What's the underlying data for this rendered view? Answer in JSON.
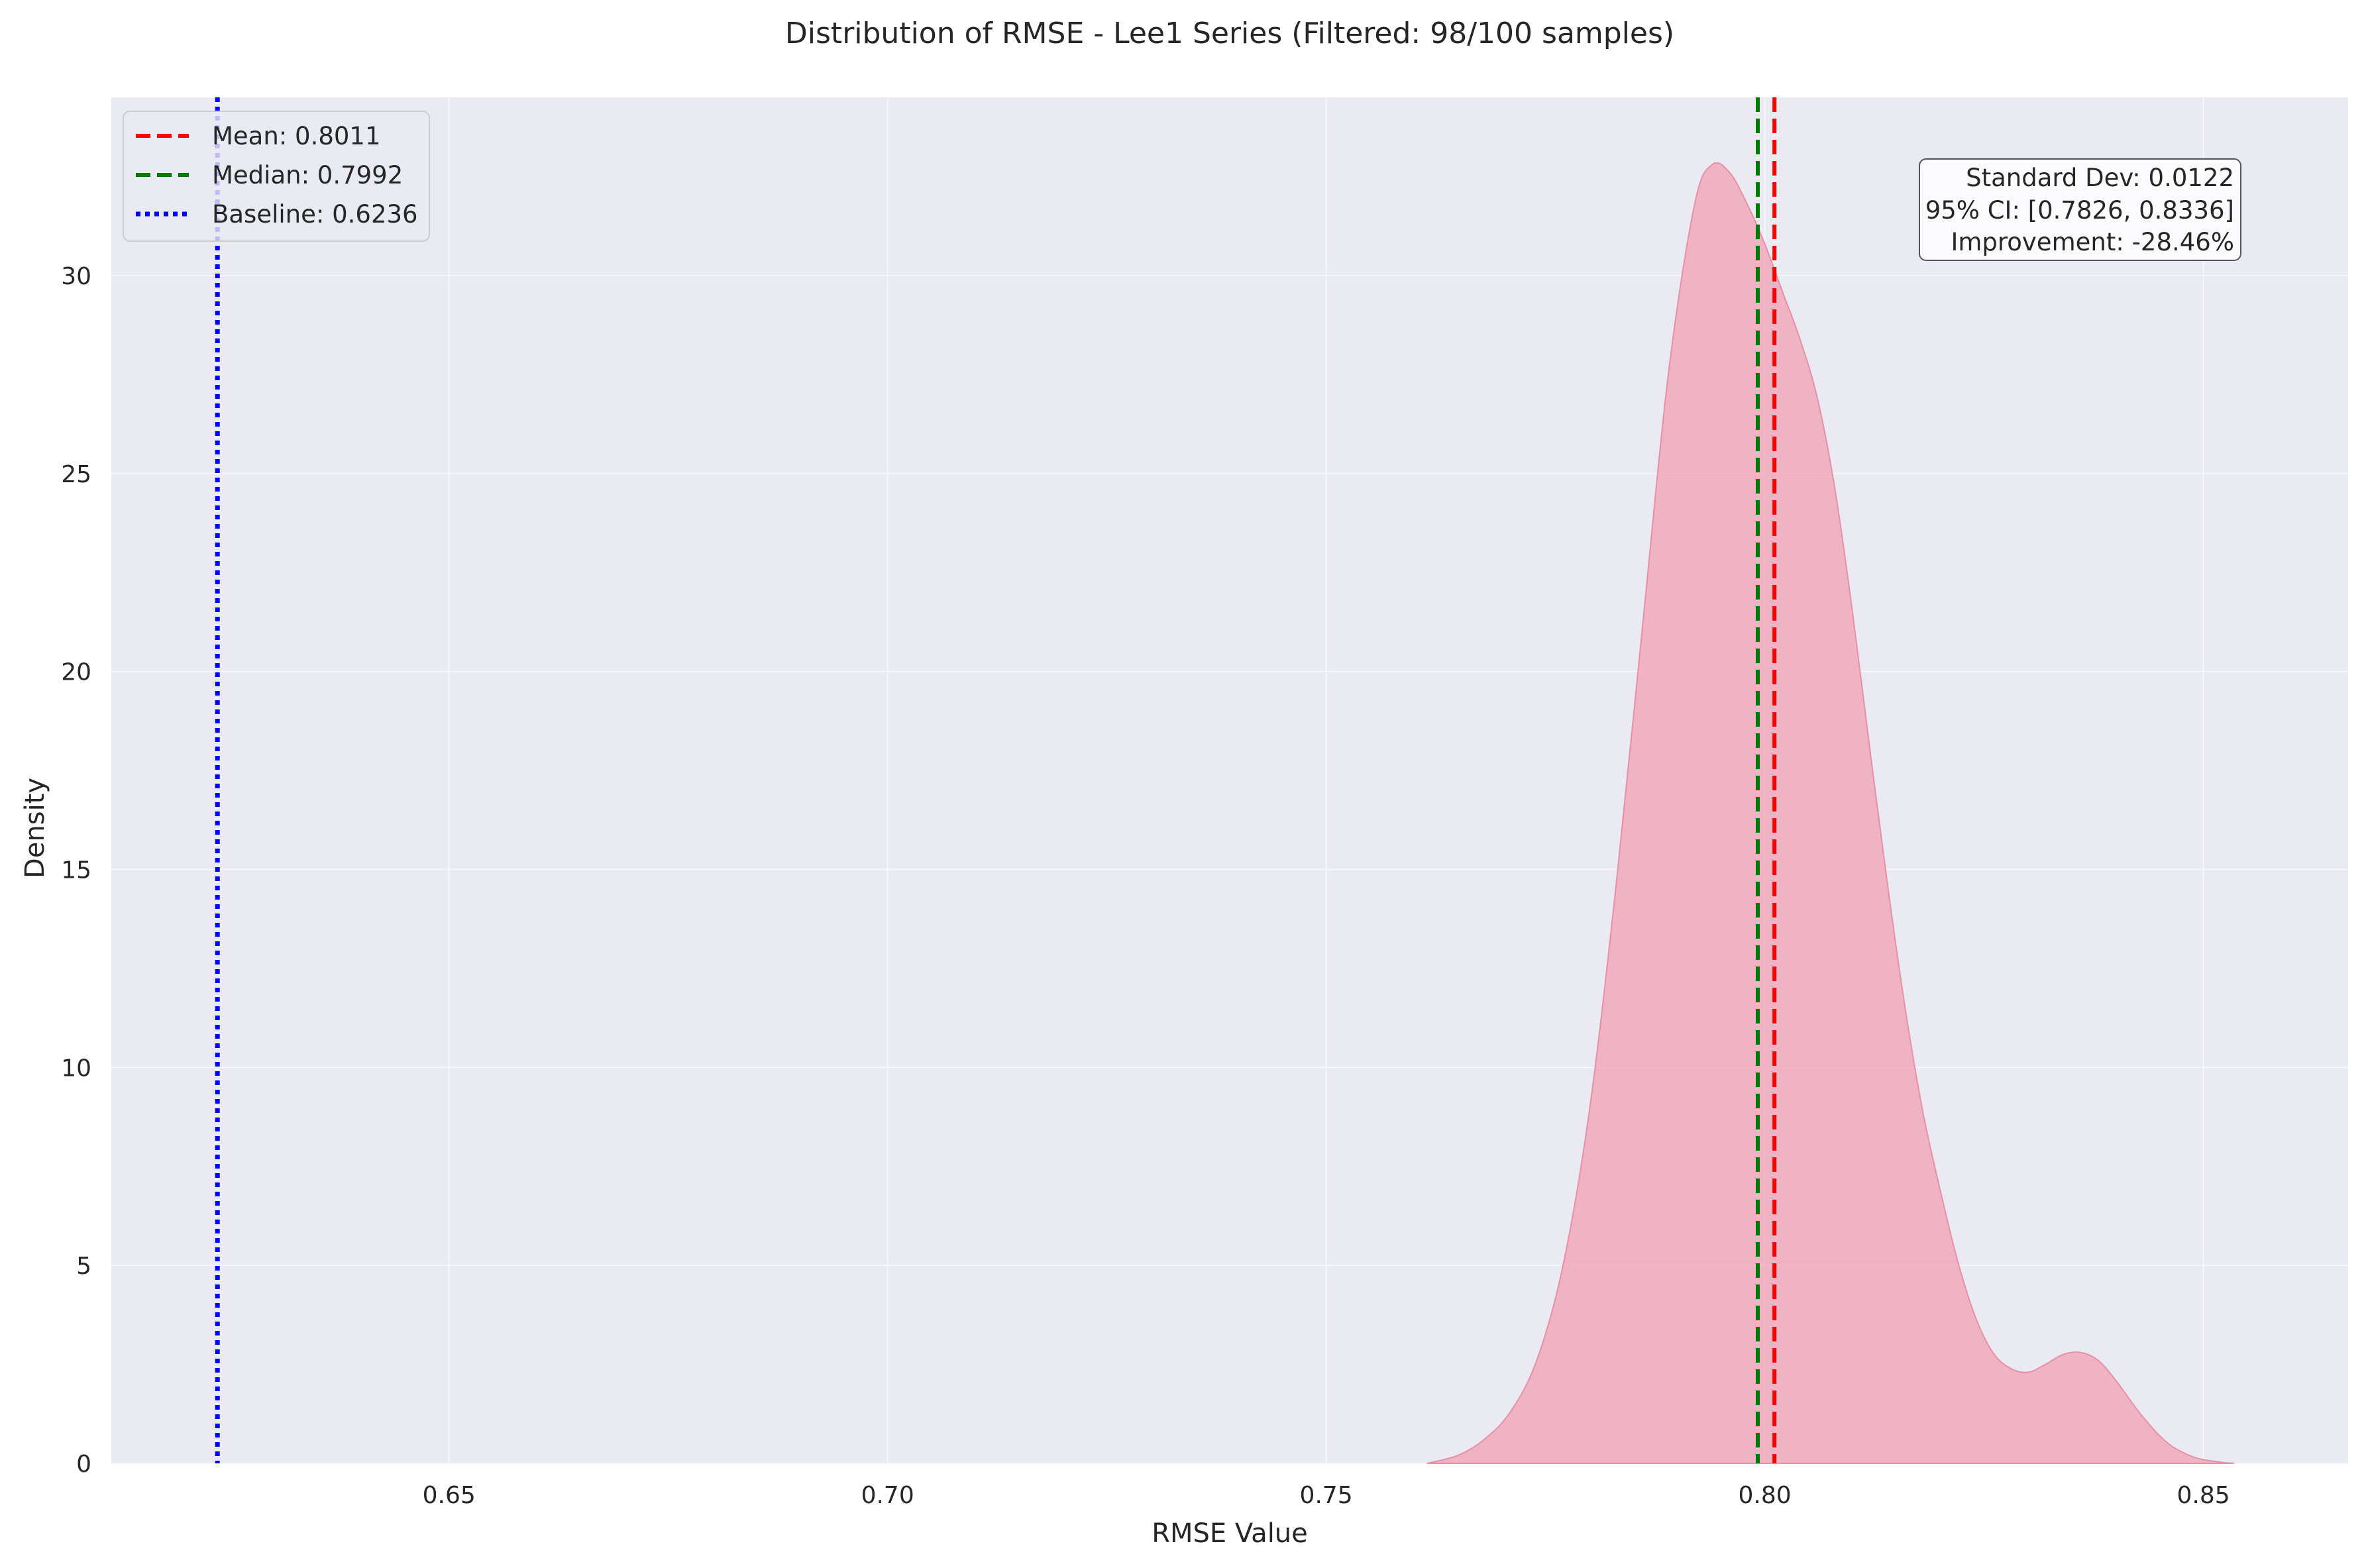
{
  "chart_data": {
    "type": "area",
    "title": "Distribution of RMSE - Lee1 Series (Filtered: 98/100 samples)",
    "xlabel": "RMSE Value",
    "ylabel": "Density",
    "xlim": [
      0.6115,
      0.8665
    ],
    "ylim": [
      0,
      34.5
    ],
    "x_ticks": [
      {
        "value": 0.65,
        "label": "0.65"
      },
      {
        "value": 0.7,
        "label": "0.70"
      },
      {
        "value": 0.75,
        "label": "0.75"
      },
      {
        "value": 0.8,
        "label": "0.80"
      },
      {
        "value": 0.85,
        "label": "0.85"
      }
    ],
    "y_ticks": [
      {
        "value": 0,
        "label": "0"
      },
      {
        "value": 5,
        "label": "5"
      },
      {
        "value": 10,
        "label": "10"
      },
      {
        "value": 15,
        "label": "15"
      },
      {
        "value": 20,
        "label": "20"
      },
      {
        "value": 25,
        "label": "25"
      },
      {
        "value": 30,
        "label": "30"
      }
    ],
    "grid": true,
    "density": {
      "color": "#f0a0b4",
      "x": [
        0.7615,
        0.765,
        0.768,
        0.771,
        0.774,
        0.777,
        0.78,
        0.783,
        0.786,
        0.789,
        0.792,
        0.794,
        0.796,
        0.798,
        0.8,
        0.802,
        0.804,
        0.806,
        0.808,
        0.81,
        0.812,
        0.814,
        0.816,
        0.818,
        0.82,
        0.822,
        0.824,
        0.826,
        0.828,
        0.83,
        0.832,
        0.834,
        0.836,
        0.838,
        0.84,
        0.843,
        0.846,
        0.849,
        0.852,
        0.8535
      ],
      "y": [
        0.0,
        0.2,
        0.6,
        1.3,
        2.6,
        5.0,
        8.9,
        14.5,
        21.0,
        27.5,
        31.8,
        32.8,
        32.6,
        31.8,
        30.8,
        29.6,
        28.4,
        26.9,
        24.6,
        21.5,
        18.0,
        14.6,
        11.5,
        8.9,
        6.9,
        5.1,
        3.7,
        2.8,
        2.4,
        2.3,
        2.5,
        2.75,
        2.8,
        2.6,
        2.1,
        1.2,
        0.5,
        0.15,
        0.03,
        0.0
      ]
    },
    "reference_lines": [
      {
        "name": "Mean",
        "value": 0.8011,
        "label": "Mean: 0.8011",
        "color": "#ff0000",
        "style": "dashed"
      },
      {
        "name": "Median",
        "value": 0.7992,
        "label": "Median: 0.7992",
        "color": "#007a00",
        "style": "dashed"
      },
      {
        "name": "Baseline",
        "value": 0.6236,
        "label": "Baseline: 0.6236",
        "color": "#0000ff",
        "style": "dotted"
      }
    ],
    "legend_position": "top-left",
    "stats_box": {
      "position": "top-right",
      "lines": [
        "Standard Dev: 0.0122",
        "95% CI: [0.7826, 0.8336]",
        "Improvement: -28.46%"
      ]
    },
    "colors": {
      "plot_background": "#eaeaf2",
      "grid": "#f7f7fa",
      "text": "#262626"
    }
  }
}
